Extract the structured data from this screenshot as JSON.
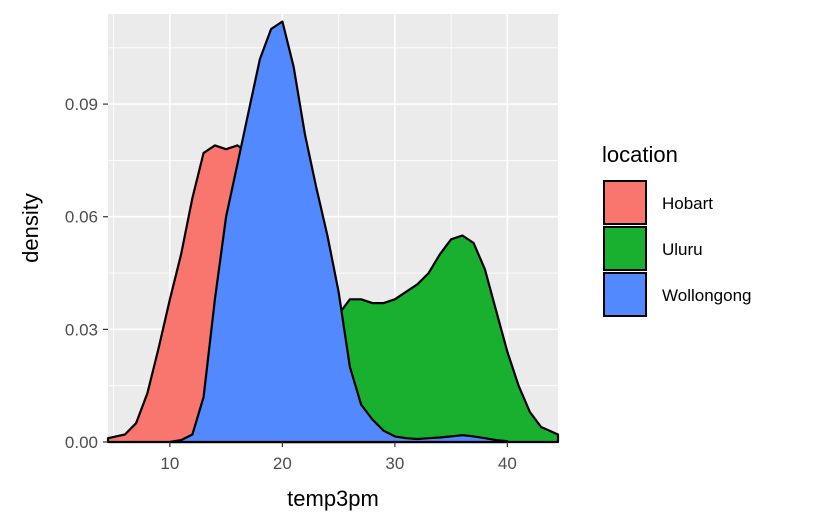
{
  "chart_data": {
    "type": "area",
    "subtype": "density",
    "title": "",
    "xlabel": "temp3pm",
    "ylabel": "density",
    "xlim": [
      4.5,
      44.5
    ],
    "ylim": [
      0,
      0.114
    ],
    "xticks": [
      10,
      20,
      30,
      40
    ],
    "xtick_labels": [
      "10",
      "20",
      "30",
      "40"
    ],
    "yticks": [
      0,
      0.03,
      0.06,
      0.09
    ],
    "ytick_labels": [
      "0.00",
      "0.03",
      "0.06",
      "0.09"
    ],
    "grid": true,
    "legend": {
      "title": "location",
      "position": "right"
    },
    "series": [
      {
        "name": "Hobart",
        "color": "#F8766D",
        "x": [
          4.5,
          6,
          7,
          8,
          9,
          10,
          11,
          12,
          13,
          14,
          15,
          16,
          17,
          18,
          19,
          20,
          21,
          22,
          23,
          24,
          25,
          26,
          27,
          28,
          29,
          30
        ],
        "y": [
          0.001,
          0.002,
          0.005,
          0.013,
          0.025,
          0.038,
          0.05,
          0.065,
          0.077,
          0.079,
          0.078,
          0.079,
          0.077,
          0.068,
          0.055,
          0.04,
          0.026,
          0.015,
          0.008,
          0.004,
          0.002,
          0.001,
          0.0005,
          0.0002,
          0.0001,
          0
        ]
      },
      {
        "name": "Uluru",
        "color": "#19B02F",
        "x": [
          20,
          21,
          22,
          23,
          24,
          25,
          26,
          27,
          28,
          29,
          30,
          31,
          32,
          33,
          34,
          35,
          36,
          37,
          38,
          39,
          40,
          41,
          42,
          43,
          44.5
        ],
        "y": [
          0.001,
          0.003,
          0.007,
          0.014,
          0.024,
          0.034,
          0.038,
          0.038,
          0.037,
          0.037,
          0.038,
          0.04,
          0.042,
          0.045,
          0.05,
          0.054,
          0.055,
          0.053,
          0.046,
          0.035,
          0.024,
          0.015,
          0.008,
          0.004,
          0.002
        ]
      },
      {
        "name": "Wollongong",
        "color": "#5289FF",
        "x": [
          10,
          11,
          12,
          13,
          14,
          15,
          16,
          17,
          18,
          19,
          20,
          21,
          22,
          23,
          24,
          25,
          26,
          27,
          28,
          29,
          30,
          31,
          32,
          33,
          34,
          35,
          36,
          37,
          38,
          39,
          40
        ],
        "y": [
          0,
          0.0005,
          0.002,
          0.012,
          0.038,
          0.06,
          0.074,
          0.088,
          0.102,
          0.11,
          0.112,
          0.1,
          0.082,
          0.068,
          0.055,
          0.04,
          0.02,
          0.01,
          0.006,
          0.003,
          0.0015,
          0.001,
          0.0008,
          0.001,
          0.0012,
          0.0015,
          0.0018,
          0.0015,
          0.001,
          0.0005,
          0.0002
        ]
      }
    ]
  }
}
